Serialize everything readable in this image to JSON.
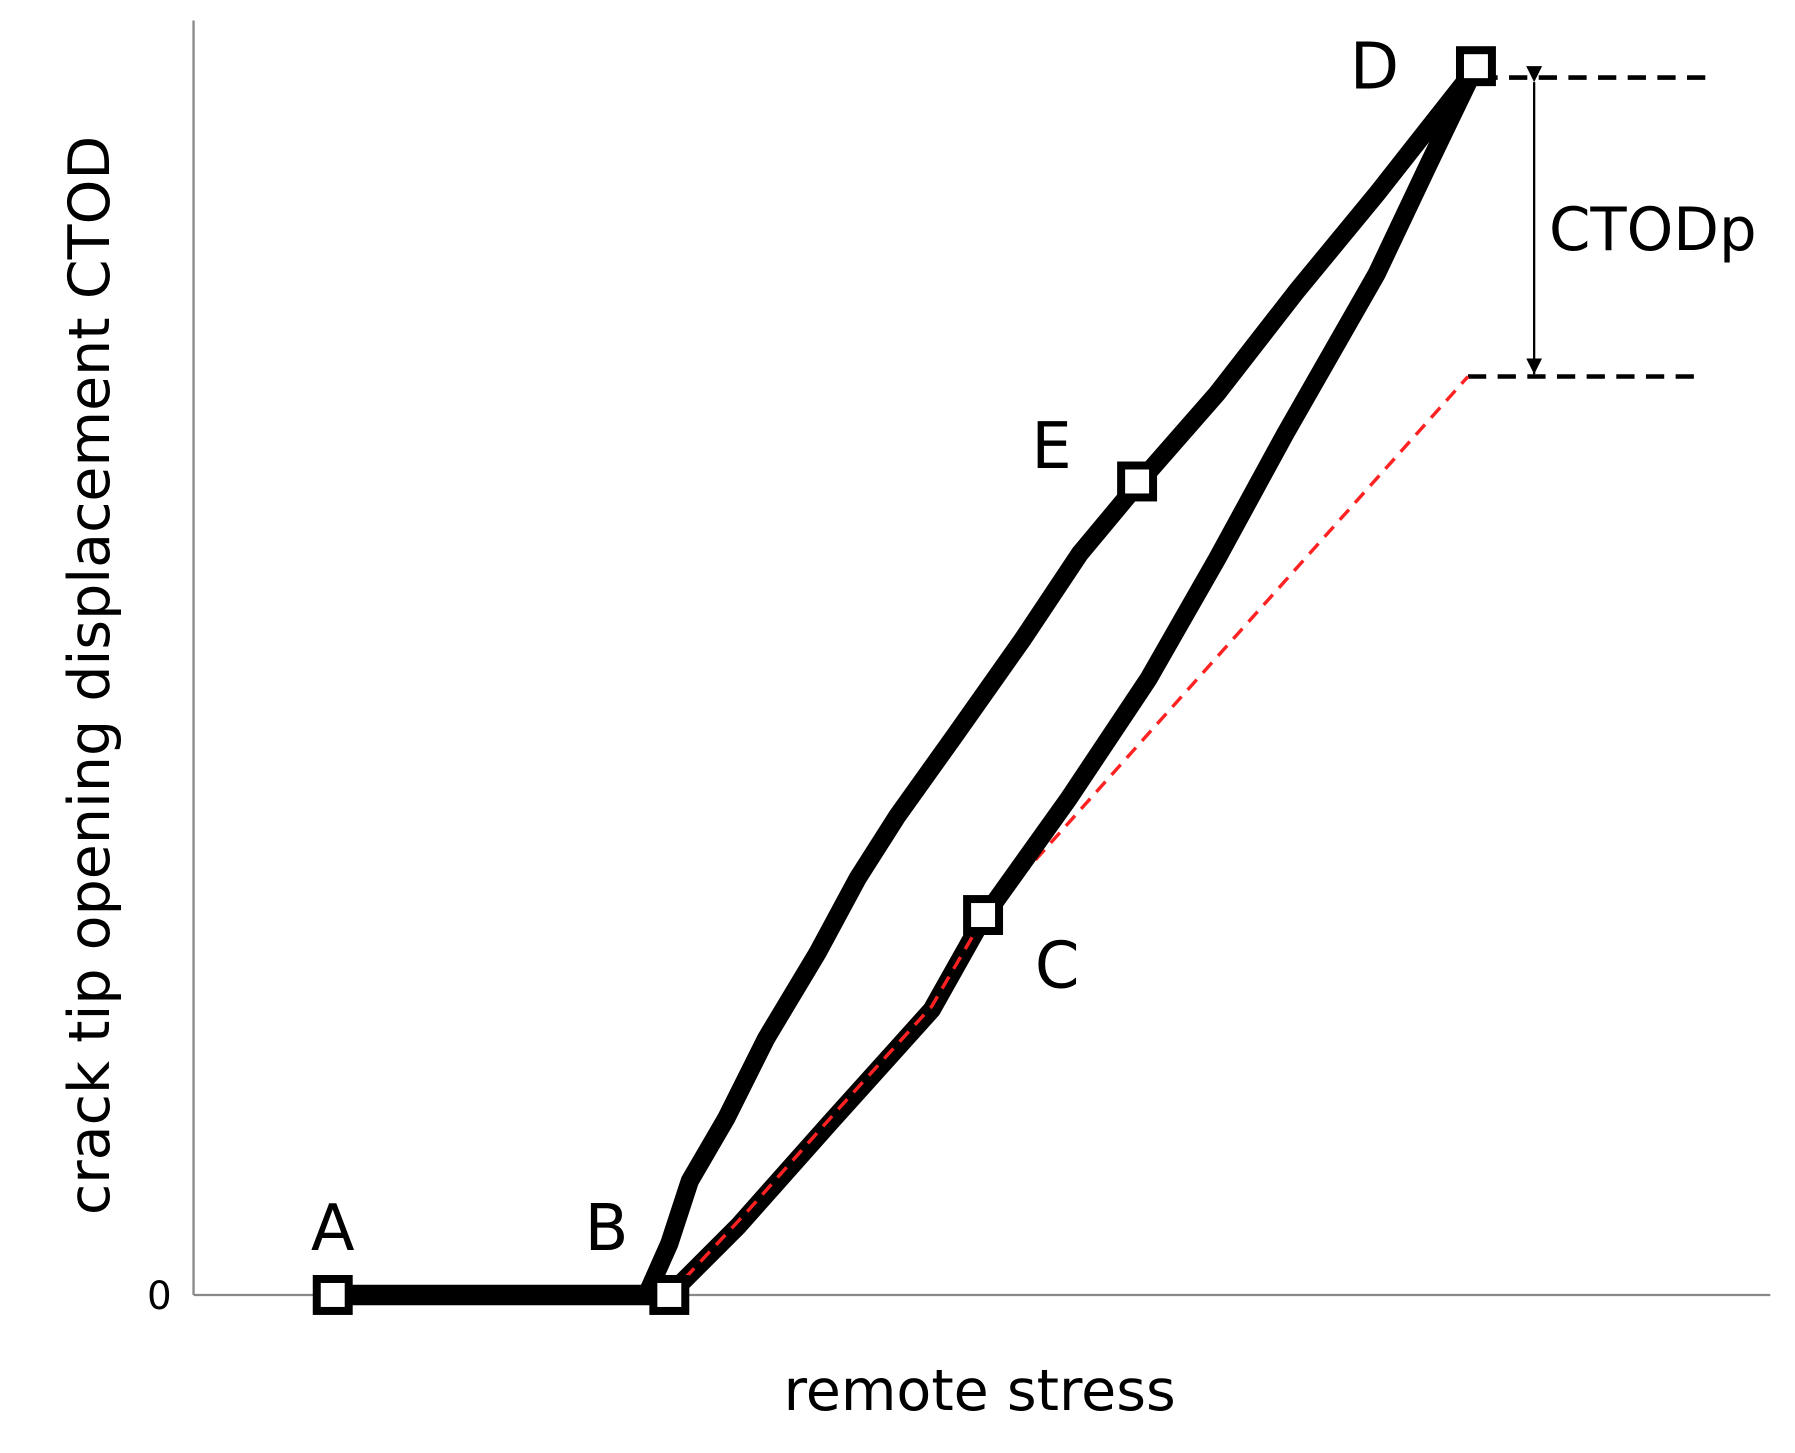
{
  "axes": {
    "y_label": "crack tip opening displacement CTOD",
    "x_label": "remote stress",
    "origin_label": "0"
  },
  "points": [
    {
      "label": "A"
    },
    {
      "label": "B"
    },
    {
      "label": "C"
    },
    {
      "label": "D"
    },
    {
      "label": "E"
    }
  ],
  "annotation": "CTODp"
}
